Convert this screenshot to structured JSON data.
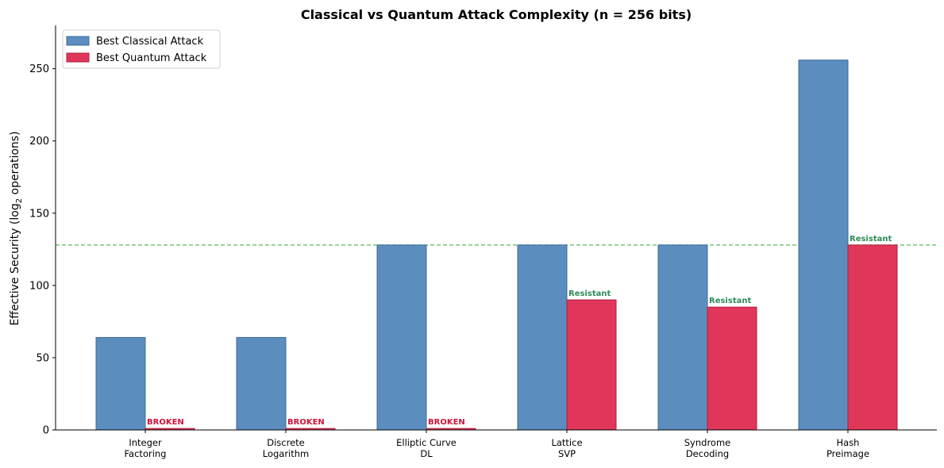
{
  "chart_data": {
    "type": "bar",
    "title": "Classical vs Quantum Attack Complexity (n = 256 bits)",
    "xlabel": "",
    "ylabel": "Effective Security (log",
    "ylabel_sub": "2",
    "ylabel_tail": " operations)",
    "ylim": [
      0,
      280
    ],
    "yticks": [
      0,
      50,
      100,
      150,
      200,
      250
    ],
    "grid": false,
    "legend_position": "top-left",
    "reference_line": {
      "y": 128,
      "color": "#5cb85c",
      "style": "dashed"
    },
    "categories": [
      [
        "Integer",
        "Factoring"
      ],
      [
        "Discrete",
        "Logarithm"
      ],
      [
        "Elliptic Curve",
        "DL"
      ],
      [
        "Lattice",
        "SVP"
      ],
      [
        "Syndrome",
        "Decoding"
      ],
      [
        "Hash",
        "Preimage"
      ]
    ],
    "series": [
      {
        "name": "Best Classical Attack",
        "color": "#5b8ebf",
        "edge": "#3f6b96",
        "values": [
          64,
          64,
          128,
          128,
          128,
          256
        ]
      },
      {
        "name": "Best Quantum Attack",
        "color": "#e0365a",
        "edge": "#b01f3f",
        "values": [
          1,
          1,
          1,
          90,
          85,
          128
        ]
      }
    ],
    "annotations": [
      "BROKEN",
      "BROKEN",
      "BROKEN",
      "Resistant",
      "Resistant",
      "Resistant"
    ],
    "annotation_colors": {
      "BROKEN": "#d0143c",
      "Resistant": "#2e8b57"
    }
  }
}
